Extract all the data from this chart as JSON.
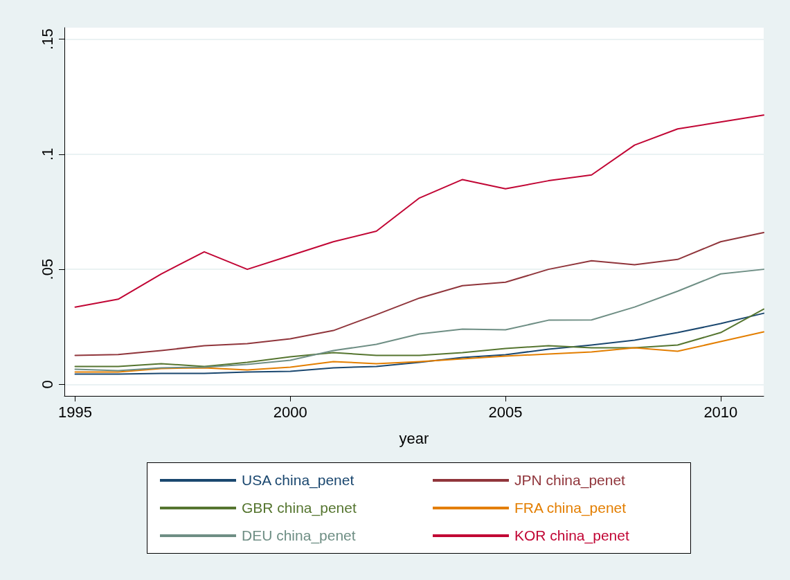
{
  "chart_data": {
    "type": "line",
    "xlabel": "year",
    "x": [
      1995,
      1996,
      1997,
      1998,
      1999,
      2000,
      2001,
      2002,
      2003,
      2004,
      2005,
      2006,
      2007,
      2008,
      2009,
      2010,
      2011
    ],
    "series": [
      {
        "name": "USA china_penet",
        "color": "#1a476f",
        "values": [
          0.0045,
          0.0045,
          0.0048,
          0.0048,
          0.0054,
          0.0057,
          0.0072,
          0.0078,
          0.0096,
          0.0117,
          0.0129,
          0.0153,
          0.0171,
          0.0192,
          0.0225,
          0.0264,
          0.0309
        ]
      },
      {
        "name": "JPN china_penet",
        "color": "#90353b",
        "values": [
          0.0126,
          0.013,
          0.0147,
          0.0168,
          0.0177,
          0.0198,
          0.0234,
          0.0303,
          0.0375,
          0.0429,
          0.0444,
          0.05,
          0.0537,
          0.052,
          0.0543,
          0.062,
          0.066
        ]
      },
      {
        "name": "GBR china_penet",
        "color": "#55752f",
        "values": [
          0.0078,
          0.0078,
          0.009,
          0.0078,
          0.0096,
          0.012,
          0.0138,
          0.0126,
          0.0126,
          0.0138,
          0.0156,
          0.0168,
          0.0159,
          0.0159,
          0.0171,
          0.0225,
          0.0327
        ]
      },
      {
        "name": "FRA china_penet",
        "color": "#e37e00",
        "values": [
          0.0054,
          0.0054,
          0.0069,
          0.0072,
          0.0063,
          0.0075,
          0.0099,
          0.009,
          0.0099,
          0.0111,
          0.0123,
          0.0132,
          0.0141,
          0.0159,
          0.0144,
          0.0186,
          0.0228
        ]
      },
      {
        "name": "DEU china_penet",
        "color": "#6e8e84",
        "values": [
          0.0066,
          0.006,
          0.0072,
          0.0075,
          0.0087,
          0.0105,
          0.0147,
          0.0174,
          0.0219,
          0.024,
          0.0237,
          0.0279,
          0.028,
          0.0336,
          0.0405,
          0.048,
          0.05
        ]
      },
      {
        "name": "KOR china_penet",
        "color": "#c10534",
        "values": [
          0.0336,
          0.037,
          0.048,
          0.0576,
          0.05,
          0.056,
          0.062,
          0.0666,
          0.081,
          0.089,
          0.085,
          0.0885,
          0.091,
          0.104,
          0.111,
          0.114,
          0.117
        ]
      }
    ],
    "xlim": [
      1994.75,
      2011
    ],
    "xticks": [
      1995,
      2000,
      2005,
      2010
    ],
    "ylim": [
      -0.005,
      0.155
    ],
    "yticks": [
      0,
      {
        "value": 0.05,
        "label": ".05"
      },
      {
        "value": 0.1,
        "label": ".1"
      },
      {
        "value": 0.15,
        "label": ".15"
      }
    ],
    "grid": "y",
    "legend": "bottom",
    "marker": "none",
    "line_style": "solid"
  }
}
